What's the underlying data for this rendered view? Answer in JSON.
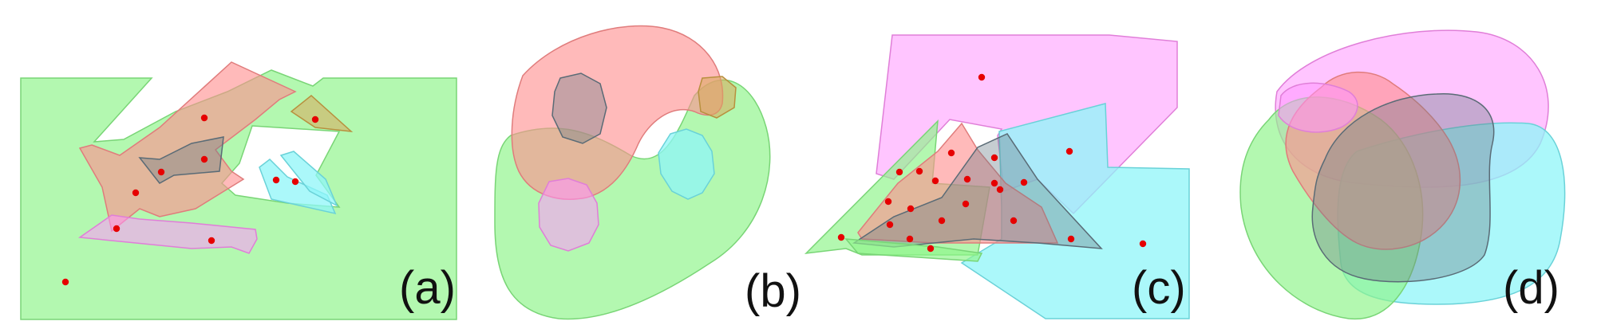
{
  "colors": {
    "green": "#8ff58b",
    "red": "#ff8f8f",
    "magenta": "#ff96ff",
    "cyan": "#8ff5f8",
    "slate": "#6a7b86",
    "point": "#e60000"
  },
  "panels": [
    {
      "id": "a",
      "label": "(a)"
    },
    {
      "id": "b",
      "label": "(b)"
    },
    {
      "id": "c",
      "label": "(c)"
    },
    {
      "id": "d",
      "label": "(d)"
    }
  ]
}
